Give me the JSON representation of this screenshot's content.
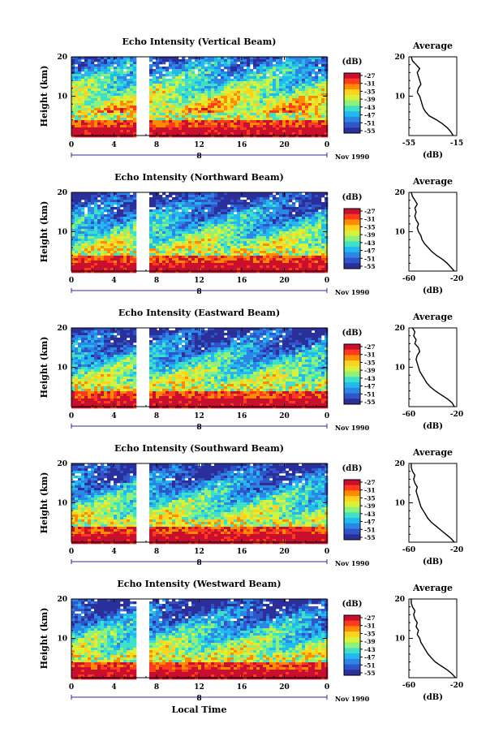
{
  "chart_data": [
    {
      "type": "heatmap",
      "title": "Echo Intensity (Vertical Beam)",
      "ylabel": "Height (km)",
      "x_ticks": [
        "0",
        "4",
        "8",
        "12",
        "16",
        "20",
        "0"
      ],
      "y_ticks": [
        "20",
        "10"
      ],
      "xlim": [
        0,
        24
      ],
      "ylim": [
        0,
        20
      ],
      "day_label": "8",
      "month_label": "Nov 1990",
      "gap": [
        6,
        7.3
      ],
      "colorbar": {
        "unit": "(dB)",
        "levels": [
          "-27",
          "-31",
          "-35",
          "-39",
          "-43",
          "-47",
          "-51",
          "-55"
        ]
      },
      "avg": {
        "title": "Average",
        "xlabel": "(dB)",
        "xlim": [
          -55,
          -15
        ],
        "x_ticks": [
          "-55",
          "-15"
        ],
        "y_ticks": [
          "20",
          "10"
        ],
        "profile": [
          [
            -18,
            0
          ],
          [
            -20,
            1
          ],
          [
            -23,
            2
          ],
          [
            -27,
            3
          ],
          [
            -32,
            4
          ],
          [
            -38,
            5
          ],
          [
            -41,
            6
          ],
          [
            -43,
            7
          ],
          [
            -44,
            8
          ],
          [
            -45,
            9
          ],
          [
            -46,
            10
          ],
          [
            -48,
            11
          ],
          [
            -47,
            12
          ],
          [
            -45,
            13
          ],
          [
            -46,
            14
          ],
          [
            -47,
            15
          ],
          [
            -48,
            16
          ],
          [
            -46,
            17
          ],
          [
            -49,
            18
          ],
          [
            -52,
            19
          ],
          [
            -53,
            20
          ]
        ]
      }
    },
    {
      "type": "heatmap",
      "title": "Echo Intensity (Northward Beam)",
      "ylabel": "Height (km)",
      "x_ticks": [
        "0",
        "4",
        "8",
        "12",
        "16",
        "20",
        "0"
      ],
      "y_ticks": [
        "20",
        "10"
      ],
      "xlim": [
        0,
        24
      ],
      "ylim": [
        0,
        20
      ],
      "day_label": "8",
      "month_label": "Nov 1990",
      "gap": [
        6,
        7.3
      ],
      "colorbar": {
        "unit": "(dB)",
        "levels": [
          "-27",
          "-31",
          "-35",
          "-39",
          "-43",
          "-47",
          "-51",
          "-55"
        ]
      },
      "avg": {
        "title": "Average",
        "xlabel": "(dB)",
        "xlim": [
          -60,
          -20
        ],
        "x_ticks": [
          "-60",
          "-20"
        ],
        "y_ticks": [
          "20",
          "10"
        ],
        "profile": [
          [
            -22,
            0
          ],
          [
            -25,
            1
          ],
          [
            -28,
            2
          ],
          [
            -32,
            3
          ],
          [
            -37,
            4
          ],
          [
            -41,
            5
          ],
          [
            -44,
            6
          ],
          [
            -47,
            7
          ],
          [
            -49,
            8
          ],
          [
            -50,
            9
          ],
          [
            -52,
            10
          ],
          [
            -53,
            11
          ],
          [
            -52,
            12
          ],
          [
            -54,
            13
          ],
          [
            -55,
            14
          ],
          [
            -54,
            15
          ],
          [
            -55,
            16
          ],
          [
            -53,
            17
          ],
          [
            -55,
            18
          ],
          [
            -57,
            19
          ],
          [
            -58,
            20
          ]
        ]
      }
    },
    {
      "type": "heatmap",
      "title": "Echo Intensity (Eastward Beam)",
      "ylabel": "Height (km)",
      "x_ticks": [
        "0",
        "4",
        "8",
        "12",
        "16",
        "20",
        "0"
      ],
      "y_ticks": [
        "20",
        "10"
      ],
      "xlim": [
        0,
        24
      ],
      "ylim": [
        0,
        20
      ],
      "day_label": "8",
      "month_label": "Nov 1990",
      "gap": [
        6,
        7.3
      ],
      "colorbar": {
        "unit": "(dB)",
        "levels": [
          "-27",
          "-31",
          "-35",
          "-39",
          "-43",
          "-47",
          "-51",
          "-55"
        ]
      },
      "avg": {
        "title": "Average",
        "xlabel": "(dB)",
        "xlim": [
          -60,
          -20
        ],
        "x_ticks": [
          "-60",
          "-20"
        ],
        "y_ticks": [
          "20",
          "10"
        ],
        "profile": [
          [
            -22,
            0
          ],
          [
            -24,
            1
          ],
          [
            -28,
            2
          ],
          [
            -33,
            3
          ],
          [
            -38,
            4
          ],
          [
            -42,
            5
          ],
          [
            -45,
            6
          ],
          [
            -47,
            7
          ],
          [
            -49,
            8
          ],
          [
            -51,
            9
          ],
          [
            -52,
            10
          ],
          [
            -53,
            11
          ],
          [
            -54,
            12
          ],
          [
            -53,
            13
          ],
          [
            -51,
            14
          ],
          [
            -52,
            15
          ],
          [
            -55,
            16
          ],
          [
            -54,
            17
          ],
          [
            -56,
            18
          ],
          [
            -55,
            19
          ],
          [
            -57,
            20
          ]
        ]
      }
    },
    {
      "type": "heatmap",
      "title": "Echo Intensity (Southward Beam)",
      "ylabel": "Height (km)",
      "x_ticks": [
        "0",
        "4",
        "8",
        "12",
        "16",
        "20",
        "0"
      ],
      "y_ticks": [
        "20",
        "10"
      ],
      "xlim": [
        0,
        24
      ],
      "ylim": [
        0,
        20
      ],
      "day_label": "8",
      "month_label": "Nov 1990",
      "gap": [
        6,
        7.3
      ],
      "colorbar": {
        "unit": "(dB)",
        "levels": [
          "-27",
          "-31",
          "-35",
          "-39",
          "-43",
          "-47",
          "-51",
          "-55"
        ]
      },
      "avg": {
        "title": "Average",
        "xlabel": "(dB)",
        "xlim": [
          -60,
          -20
        ],
        "x_ticks": [
          "-60",
          "-20"
        ],
        "y_ticks": [
          "20",
          "10"
        ],
        "profile": [
          [
            -22,
            0
          ],
          [
            -25,
            1
          ],
          [
            -29,
            2
          ],
          [
            -33,
            3
          ],
          [
            -37,
            4
          ],
          [
            -41,
            5
          ],
          [
            -44,
            6
          ],
          [
            -46,
            7
          ],
          [
            -48,
            8
          ],
          [
            -50,
            9
          ],
          [
            -51,
            10
          ],
          [
            -52,
            11
          ],
          [
            -53,
            12
          ],
          [
            -54,
            13
          ],
          [
            -53,
            14
          ],
          [
            -55,
            15
          ],
          [
            -56,
            16
          ],
          [
            -55,
            17
          ],
          [
            -57,
            18
          ],
          [
            -58,
            19
          ],
          [
            -58,
            20
          ]
        ]
      }
    },
    {
      "type": "heatmap",
      "title": "Echo Intensity (Westward Beam)",
      "ylabel": "Height (km)",
      "x_ticks": [
        "0",
        "4",
        "8",
        "12",
        "16",
        "20",
        "0"
      ],
      "y_ticks": [
        "20",
        "10"
      ],
      "xlim": [
        0,
        24
      ],
      "ylim": [
        0,
        20
      ],
      "day_label": "8",
      "month_label": "Nov 1990",
      "gap": [
        6,
        7.3
      ],
      "colorbar": {
        "unit": "(dB)",
        "levels": [
          "-27",
          "-31",
          "-35",
          "-39",
          "-43",
          "-47",
          "-51",
          "-55"
        ]
      },
      "avg": {
        "title": "Average",
        "xlabel": "(dB)",
        "xlim": [
          -60,
          -20
        ],
        "x_ticks": [
          "-60",
          "-20"
        ],
        "y_ticks": [
          "20",
          "10"
        ],
        "profile": [
          [
            -21,
            0
          ],
          [
            -24,
            1
          ],
          [
            -28,
            2
          ],
          [
            -33,
            3
          ],
          [
            -38,
            4
          ],
          [
            -41,
            5
          ],
          [
            -44,
            6
          ],
          [
            -46,
            7
          ],
          [
            -48,
            8
          ],
          [
            -50,
            9
          ],
          [
            -51,
            10
          ],
          [
            -53,
            11
          ],
          [
            -52,
            12
          ],
          [
            -54,
            13
          ],
          [
            -53,
            14
          ],
          [
            -55,
            15
          ],
          [
            -56,
            16
          ],
          [
            -55,
            17
          ],
          [
            -57,
            18
          ],
          [
            -58,
            19
          ],
          [
            -58,
            20
          ]
        ]
      }
    }
  ],
  "xlabel": "Local Time",
  "colors": {
    "scale": [
      "#c8102e",
      "#ff3b1f",
      "#ff8c00",
      "#ffd21f",
      "#d8f23c",
      "#8ff07a",
      "#3fe0c8",
      "#22b8f0",
      "#2b86e6",
      "#2f55c8",
      "#2a2f9a"
    ]
  }
}
